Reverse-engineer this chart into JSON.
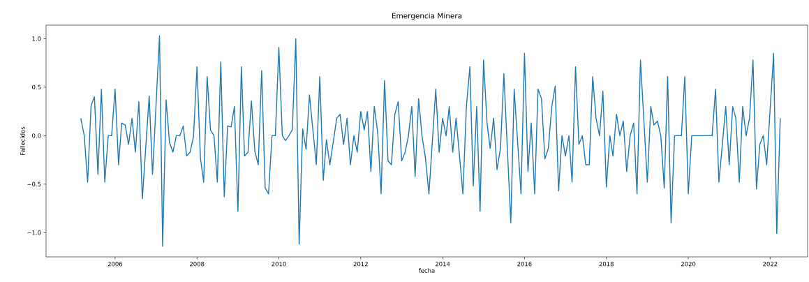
{
  "chart_data": {
    "type": "line",
    "title": "Emergencia Minera",
    "xlabel": "fecha",
    "ylabel": "Fallecidos",
    "x": [
      "2005-03",
      "2005-04",
      "2005-05",
      "2005-06",
      "2005-07",
      "2005-08",
      "2005-09",
      "2005-10",
      "2005-11",
      "2005-12",
      "2006-01",
      "2006-02",
      "2006-03",
      "2006-04",
      "2006-05",
      "2006-06",
      "2006-07",
      "2006-08",
      "2006-09",
      "2006-11",
      "2006-12",
      "2007-02",
      "2007-03",
      "2007-04",
      "2007-05",
      "2007-06",
      "2007-07",
      "2007-08",
      "2007-09",
      "2007-10",
      "2007-11",
      "2007-12",
      "2008-01",
      "2008-02",
      "2008-03",
      "2008-04",
      "2008-05",
      "2008-06",
      "2008-07",
      "2008-08",
      "2008-09",
      "2008-10",
      "2008-11",
      "2008-12",
      "2009-01",
      "2009-02",
      "2009-03",
      "2009-04",
      "2009-05",
      "2009-06",
      "2009-07",
      "2009-08",
      "2009-09",
      "2009-10",
      "2009-11",
      "2009-12",
      "2010-01",
      "2010-02",
      "2010-03",
      "2010-04",
      "2010-05",
      "2010-06",
      "2010-07",
      "2010-08",
      "2010-09",
      "2010-10",
      "2010-12",
      "2011-01",
      "2011-02",
      "2011-03",
      "2011-04",
      "2011-06",
      "2011-07",
      "2011-08",
      "2011-09",
      "2011-10",
      "2011-11",
      "2011-12",
      "2012-01",
      "2012-02",
      "2012-03",
      "2012-04",
      "2012-05",
      "2012-06",
      "2012-07",
      "2012-08",
      "2012-09",
      "2012-10",
      "2012-11",
      "2012-12",
      "2013-01",
      "2013-02",
      "2013-03",
      "2013-04",
      "2013-05",
      "2013-06",
      "2013-07",
      "2013-08",
      "2013-09",
      "2013-11",
      "2013-12",
      "2014-01",
      "2014-02",
      "2014-03",
      "2014-04",
      "2014-05",
      "2014-07",
      "2014-08",
      "2014-09",
      "2014-10",
      "2014-11",
      "2014-12",
      "2015-01",
      "2015-02",
      "2015-03",
      "2015-04",
      "2015-05",
      "2015-06",
      "2015-07",
      "2015-09",
      "2015-10",
      "2015-12",
      "2016-01",
      "2016-02",
      "2016-03",
      "2016-04",
      "2016-05",
      "2016-06",
      "2016-07",
      "2016-08",
      "2016-09",
      "2016-10",
      "2016-11",
      "2016-12",
      "2017-01",
      "2017-02",
      "2017-03",
      "2017-04",
      "2017-05",
      "2017-06",
      "2017-07",
      "2017-08",
      "2017-09",
      "2017-10",
      "2017-11",
      "2017-12",
      "2018-01",
      "2018-02",
      "2018-03",
      "2018-04",
      "2018-05",
      "2018-06",
      "2018-07",
      "2018-08",
      "2018-09",
      "2018-10",
      "2018-11",
      "2019-01",
      "2019-02",
      "2019-03",
      "2019-04",
      "2019-05",
      "2019-06",
      "2019-07",
      "2019-08",
      "2019-09",
      "2019-10",
      "2019-11",
      "2019-12",
      "2020-01",
      "2020-02",
      "2020-03",
      "2020-04",
      "2020-05",
      "2020-06",
      "2020-07",
      "2020-08",
      "2020-09",
      "2020-10",
      "2020-12",
      "2021-01",
      "2021-02",
      "2021-03",
      "2021-04",
      "2021-05",
      "2021-06",
      "2021-07",
      "2021-08",
      "2021-09",
      "2021-10",
      "2021-11",
      "2021-12",
      "2022-02",
      "2022-03",
      "2022-04"
    ],
    "series": [
      {
        "color": "#1f77b4",
        "line_style": "solid",
        "values": [
          0.18,
          0.0,
          -0.48,
          0.31,
          0.4,
          -0.4,
          0.48,
          -0.48,
          0.0,
          0.0,
          0.48,
          -0.3,
          0.13,
          0.11,
          -0.09,
          0.18,
          -0.17,
          0.35,
          -0.65,
          0.41,
          -0.4,
          1.03,
          -1.14,
          0.37,
          -0.07,
          -0.17,
          0.0,
          0.0,
          0.1,
          -0.21,
          -0.17,
          -0.01,
          0.71,
          -0.23,
          -0.48,
          0.61,
          0.06,
          0.0,
          -0.48,
          0.76,
          -0.63,
          0.1,
          0.09,
          0.3,
          -0.78,
          0.71,
          -0.21,
          -0.17,
          0.36,
          -0.16,
          -0.3,
          0.67,
          -0.54,
          -0.6,
          0.0,
          0.0,
          0.91,
          0.0,
          -0.05,
          0.0,
          0.06,
          1.0,
          -1.12,
          0.07,
          -0.14,
          0.42,
          -0.3,
          0.61,
          -0.46,
          -0.04,
          -0.3,
          0.18,
          0.22,
          -0.09,
          0.18,
          -0.3,
          0.0,
          -0.17,
          0.25,
          0.06,
          0.25,
          -0.37,
          0.3,
          0.03,
          -0.6,
          0.57,
          -0.26,
          -0.3,
          0.22,
          0.35,
          -0.26,
          -0.17,
          -0.01,
          0.3,
          -0.42,
          0.38,
          0.0,
          -0.23,
          -0.6,
          0.48,
          -0.17,
          0.18,
          0.0,
          0.3,
          -0.17,
          0.18,
          -0.6,
          0.3,
          0.71,
          -0.52,
          0.3,
          -0.78,
          0.78,
          0.13,
          -0.13,
          0.18,
          -0.35,
          -0.13,
          0.64,
          -0.9,
          0.48,
          -0.6,
          0.85,
          -0.37,
          0.13,
          -0.6,
          0.48,
          0.38,
          -0.24,
          -0.13,
          0.3,
          0.51,
          -0.57,
          0.0,
          -0.21,
          0.0,
          -0.48,
          0.71,
          -0.09,
          0.0,
          -0.3,
          -0.3,
          0.61,
          0.18,
          0.0,
          0.46,
          -0.53,
          0.0,
          -0.21,
          0.22,
          0.0,
          0.15,
          -0.37,
          0.0,
          0.13,
          -0.6,
          0.78,
          -0.48,
          0.3,
          0.11,
          0.15,
          0.0,
          -0.54,
          0.61,
          -0.9,
          0.0,
          0.0,
          0.0,
          0.61,
          -0.6,
          0.0,
          0.0,
          0.0,
          0.0,
          0.0,
          0.0,
          0.0,
          0.48,
          -0.48,
          0.3,
          -0.3,
          0.3,
          0.18,
          -0.48,
          0.3,
          0.0,
          0.18,
          0.78,
          -0.55,
          -0.09,
          0.0,
          -0.3,
          0.85,
          -1.01,
          0.18
        ]
      }
    ],
    "xlim": [
      "2004-04-25",
      "2022-12-01"
    ],
    "ylim": [
      -1.25,
      1.14
    ],
    "xticks": [
      {
        "value": "2006-01-01",
        "label": "2006"
      },
      {
        "value": "2008-01-01",
        "label": "2008"
      },
      {
        "value": "2010-01-01",
        "label": "2010"
      },
      {
        "value": "2012-01-01",
        "label": "2012"
      },
      {
        "value": "2014-01-01",
        "label": "2014"
      },
      {
        "value": "2016-01-01",
        "label": "2016"
      },
      {
        "value": "2018-01-01",
        "label": "2018"
      },
      {
        "value": "2020-01-01",
        "label": "2020"
      },
      {
        "value": "2022-01-01",
        "label": "2022"
      }
    ],
    "yticks": [
      {
        "value": -1.0,
        "label": "−1.0"
      },
      {
        "value": -0.5,
        "label": "−0.5"
      },
      {
        "value": 0.0,
        "label": "0.0"
      },
      {
        "value": 0.5,
        "label": "0.5"
      },
      {
        "value": 1.0,
        "label": "1.0"
      }
    ]
  }
}
